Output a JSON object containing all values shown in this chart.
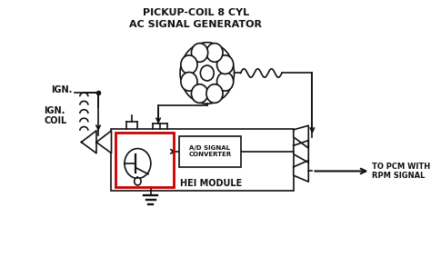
{
  "bg_color": "#ffffff",
  "title_line1": "PICKUP-COIL 8 CYL",
  "title_line2": "AC SIGNAL GENERATOR",
  "label_ign": "IGN.",
  "label_ign_coil": "IGN.\nCOIL",
  "label_ad": "A/D SIGNAL\nCONVERTER",
  "label_hei": "HEI MODULE",
  "label_pcm": "TO PCM WITH\nRPM SIGNAL",
  "line_color": "#111111",
  "red_box_color": "#cc0000",
  "text_color": "#111111",
  "title_fontsize": 8,
  "label_fontsize": 6
}
